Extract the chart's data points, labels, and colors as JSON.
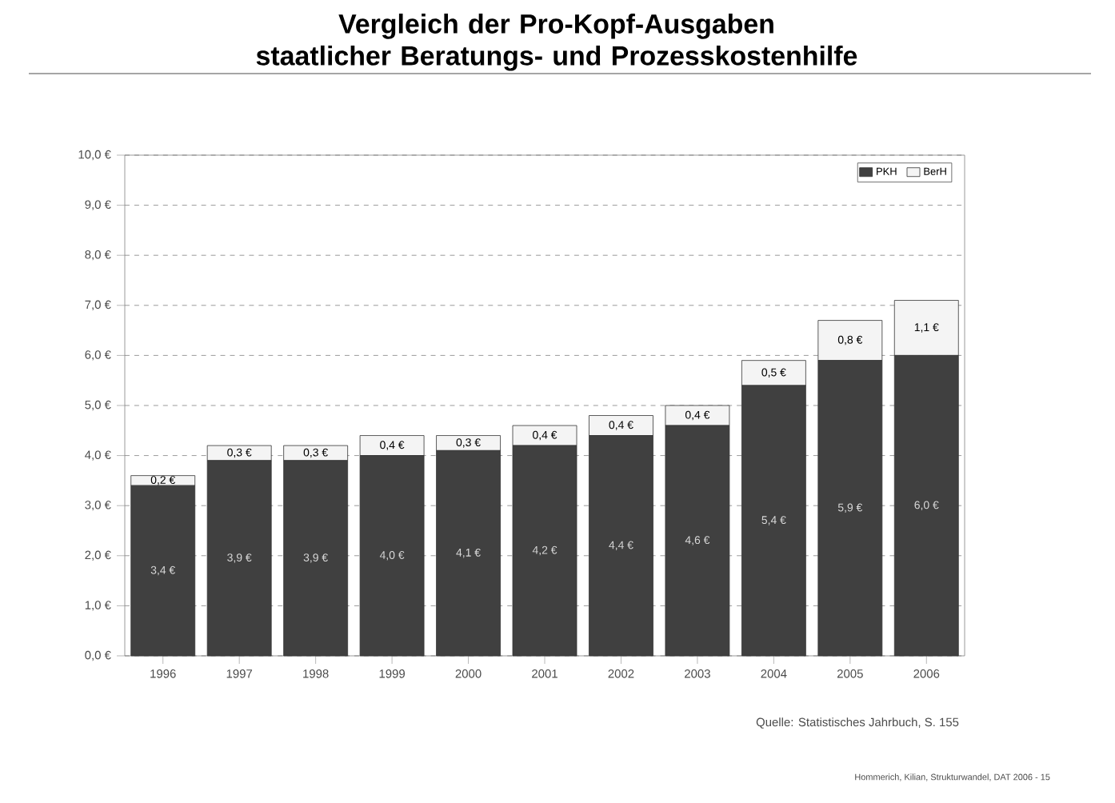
{
  "chart_data": {
    "type": "bar",
    "stacked": true,
    "title": "Vergleich der Pro-Kopf-Ausgaben staatlicher Beratungs- und Prozesskostenhilfe",
    "categories": [
      "1996",
      "1997",
      "1998",
      "1999",
      "2000",
      "2001",
      "2002",
      "2003",
      "2004",
      "2005",
      "2006"
    ],
    "series": [
      {
        "name": "PKH",
        "color": "#404040",
        "values": [
          3.4,
          3.9,
          3.9,
          4.0,
          4.1,
          4.2,
          4.4,
          4.6,
          5.4,
          5.9,
          6.0
        ],
        "value_labels": [
          "3,4 €",
          "3,9 €",
          "3,9 €",
          "4,0 €",
          "4,1 €",
          "4,2 €",
          "4,4 €",
          "4,6 €",
          "5,4 €",
          "5,9 €",
          "6,0 €"
        ]
      },
      {
        "name": "BerH",
        "color": "#f4f4f4",
        "values": [
          0.2,
          0.3,
          0.3,
          0.4,
          0.3,
          0.4,
          0.4,
          0.4,
          0.5,
          0.8,
          1.1
        ],
        "value_labels": [
          "0,2 €",
          "0,3 €",
          "0,3 €",
          "0,4 €",
          "0,3 €",
          "0,4 €",
          "0,4 €",
          "0,4 €",
          "0,5 €",
          "0,8 €",
          "1,1 €"
        ]
      }
    ],
    "ylim": [
      0,
      10
    ],
    "yticks": [
      {
        "value": 0,
        "label": "0,0 €"
      },
      {
        "value": 1,
        "label": "1,0 €"
      },
      {
        "value": 2,
        "label": "2,0 €"
      },
      {
        "value": 3,
        "label": "3,0 €"
      },
      {
        "value": 4,
        "label": "4,0 €"
      },
      {
        "value": 5,
        "label": "5,0 €"
      },
      {
        "value": 6,
        "label": "6,0 €"
      },
      {
        "value": 7,
        "label": "7,0 €"
      },
      {
        "value": 8,
        "label": "8,0 €"
      },
      {
        "value": 9,
        "label": "9,0 €"
      },
      {
        "value": 10,
        "label": "10,0 €"
      }
    ],
    "grid": "y",
    "legend": "top right",
    "annotations": [
      "Quelle: Statistisches Jahrbuch, S. 155",
      "Hommerich, Kilian, Strukturwandel, DAT 2006 - 15"
    ]
  }
}
